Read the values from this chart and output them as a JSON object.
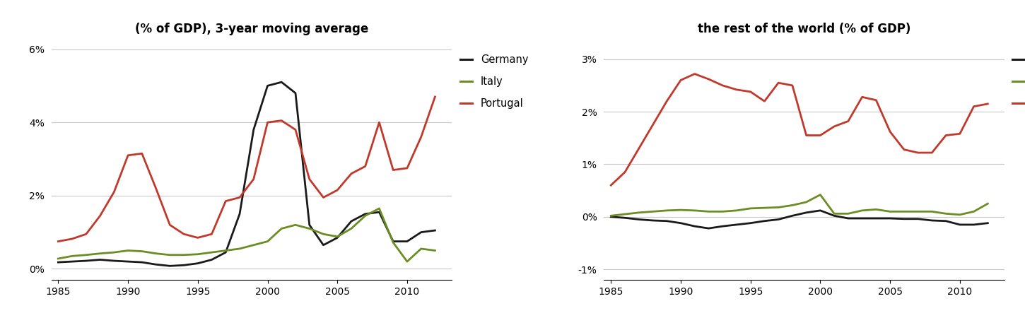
{
  "title_left": "(% of GDP), 3-year moving average",
  "title_right": "the rest of the world (% of GDP)",
  "years": [
    1985,
    1986,
    1987,
    1988,
    1989,
    1990,
    1991,
    1992,
    1993,
    1994,
    1995,
    1996,
    1997,
    1998,
    1999,
    2000,
    2001,
    2002,
    2003,
    2004,
    2005,
    2006,
    2007,
    2008,
    2009,
    2010,
    2011,
    2012
  ],
  "left": {
    "germany": [
      0.18,
      0.2,
      0.22,
      0.25,
      0.22,
      0.2,
      0.18,
      0.12,
      0.08,
      0.1,
      0.15,
      0.25,
      0.45,
      1.5,
      3.8,
      5.0,
      5.1,
      4.8,
      1.2,
      0.65,
      0.85,
      1.3,
      1.5,
      1.55,
      0.75,
      0.75,
      1.0,
      1.05
    ],
    "italy": [
      0.28,
      0.35,
      0.38,
      0.42,
      0.45,
      0.5,
      0.48,
      0.42,
      0.38,
      0.38,
      0.4,
      0.45,
      0.5,
      0.55,
      0.65,
      0.75,
      1.1,
      1.2,
      1.1,
      0.95,
      0.88,
      1.1,
      1.45,
      1.65,
      0.72,
      0.2,
      0.55,
      0.5
    ],
    "portugal": [
      0.75,
      0.82,
      0.95,
      1.45,
      2.1,
      3.1,
      3.15,
      2.2,
      1.2,
      0.95,
      0.85,
      0.95,
      1.85,
      1.95,
      2.45,
      4.0,
      4.05,
      3.8,
      2.45,
      1.95,
      2.15,
      2.6,
      2.8,
      4.0,
      2.7,
      2.75,
      3.6,
      4.7
    ],
    "ylim": [
      -0.3,
      6.3
    ],
    "yticks": [
      0,
      2,
      4,
      6
    ],
    "yticklabels": [
      "0%",
      "2%",
      "4%",
      "6%"
    ]
  },
  "right": {
    "germany": [
      0.0,
      -0.02,
      -0.05,
      -0.07,
      -0.08,
      -0.12,
      -0.18,
      -0.22,
      -0.18,
      -0.15,
      -0.12,
      -0.08,
      -0.05,
      0.02,
      0.08,
      0.12,
      0.02,
      -0.03,
      -0.03,
      -0.03,
      -0.03,
      -0.04,
      -0.04,
      -0.07,
      -0.08,
      -0.15,
      -0.15,
      -0.12
    ],
    "italy": [
      0.02,
      0.05,
      0.08,
      0.1,
      0.12,
      0.13,
      0.12,
      0.1,
      0.1,
      0.12,
      0.16,
      0.17,
      0.18,
      0.22,
      0.28,
      0.42,
      0.06,
      0.06,
      0.12,
      0.14,
      0.1,
      0.1,
      0.1,
      0.1,
      0.06,
      0.04,
      0.1,
      0.25
    ],
    "portugal": [
      0.6,
      0.85,
      1.3,
      1.75,
      2.2,
      2.6,
      2.72,
      2.62,
      2.5,
      2.42,
      2.38,
      2.2,
      2.55,
      2.5,
      1.55,
      1.55,
      1.72,
      1.82,
      2.28,
      2.22,
      1.62,
      1.28,
      1.22,
      1.22,
      1.55,
      1.58,
      2.1,
      2.15
    ],
    "ylim": [
      -1.2,
      3.4
    ],
    "yticks": [
      -1,
      0,
      1,
      2,
      3
    ],
    "yticklabels": [
      "-1%",
      "0%",
      "1%",
      "2%",
      "3%"
    ]
  },
  "colors": {
    "germany": "#1a1a1a",
    "italy": "#6b8e23",
    "portugal": "#c0392b"
  },
  "xlim": [
    1984.5,
    2013.2
  ],
  "xticks": [
    1985,
    1990,
    1995,
    2000,
    2005,
    2010
  ]
}
